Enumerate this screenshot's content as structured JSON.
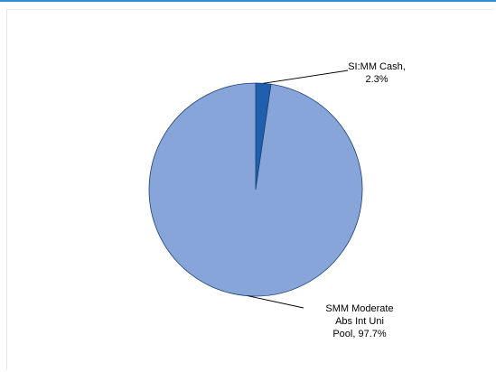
{
  "chart_data": {
    "type": "pie",
    "slices": [
      {
        "label_lines": [
          "SI:MM Cash,",
          "2.3%"
        ],
        "value": 2.3,
        "color": "#1f5fae"
      },
      {
        "label_lines": [
          "SMM Moderate",
          "Abs Int Uni",
          "Pool, 97.7%"
        ],
        "value": 97.7,
        "color": "#87a5d9"
      }
    ],
    "start_angle_deg": 0,
    "direction": "clockwise",
    "outline_color": "#1b3f73",
    "leader_color": "#000000",
    "accent_color": "#2e8fd6"
  }
}
